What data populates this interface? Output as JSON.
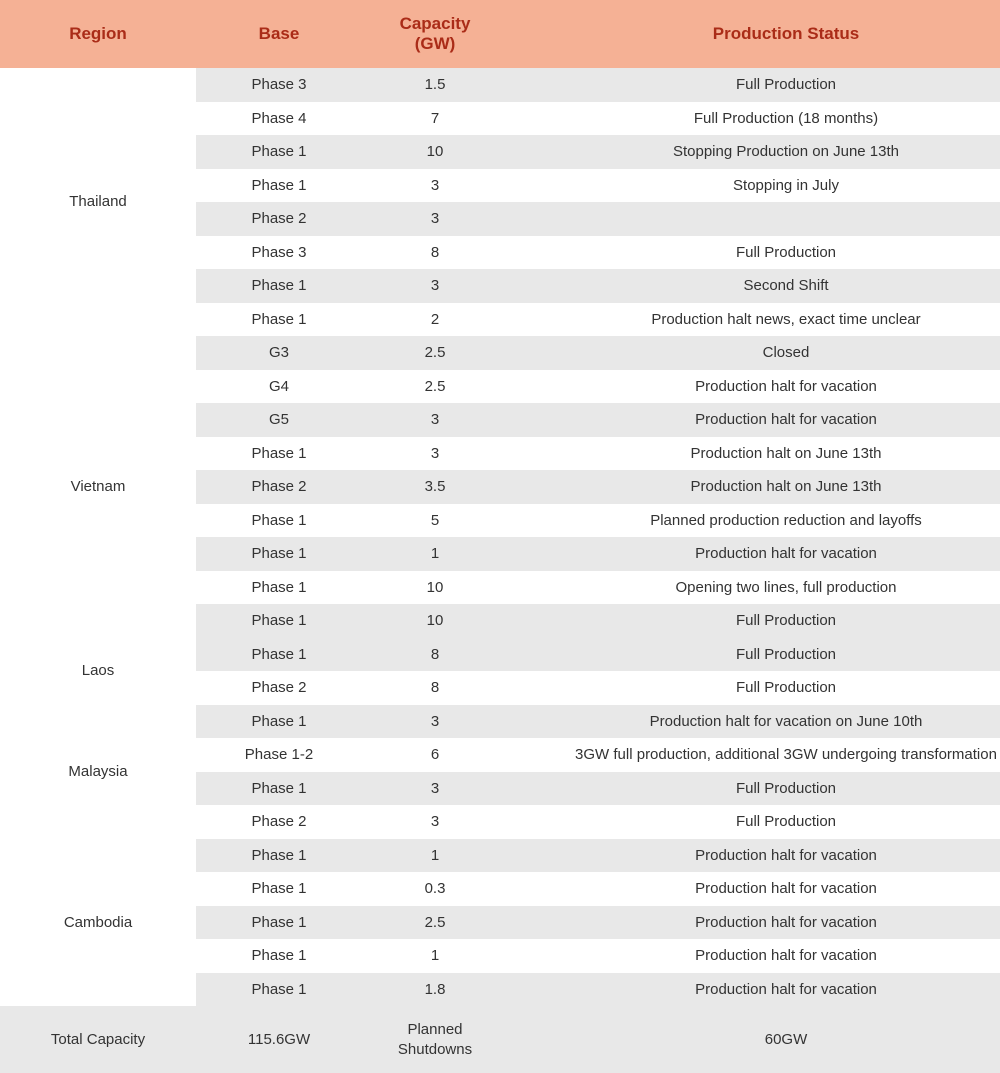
{
  "headers": {
    "region": "Region",
    "base": "Base",
    "capacity": "Capacity\n(GW)",
    "status": "Production Status"
  },
  "regions": [
    {
      "name": "Thailand",
      "rows": [
        {
          "base": "Phase 3",
          "capacity": "1.5",
          "status": "Full Production"
        },
        {
          "base": "Phase 4",
          "capacity": "7",
          "status": "Full Production (18 months)"
        },
        {
          "base": "Phase 1",
          "capacity": "10",
          "status": "Stopping Production on June 13th"
        },
        {
          "base": "Phase 1",
          "capacity": "3",
          "status": "Stopping in July"
        },
        {
          "base": "Phase 2",
          "capacity": "3",
          "status": ""
        },
        {
          "base": "Phase 3",
          "capacity": "8",
          "status": "Full Production"
        },
        {
          "base": "Phase 1",
          "capacity": "3",
          "status": "Second Shift"
        },
        {
          "base": "Phase 1",
          "capacity": "2",
          "status": "Production halt news, exact time unclear"
        }
      ]
    },
    {
      "name": "Vietnam",
      "rows": [
        {
          "base": "G3",
          "capacity": "2.5",
          "status": "Closed"
        },
        {
          "base": "G4",
          "capacity": "2.5",
          "status": "Production halt for vacation"
        },
        {
          "base": "G5",
          "capacity": "3",
          "status": "Production halt for vacation"
        },
        {
          "base": "Phase 1",
          "capacity": "3",
          "status": "Production halt on June 13th"
        },
        {
          "base": "Phase 2",
          "capacity": "3.5",
          "status": "Production halt on June 13th"
        },
        {
          "base": "Phase 1",
          "capacity": "5",
          "status": "Planned production reduction and layoffs"
        },
        {
          "base": "Phase 1",
          "capacity": "1",
          "status": "Production halt for vacation"
        },
        {
          "base": "Phase 1",
          "capacity": "10",
          "status": "Opening two lines, full production"
        },
        {
          "base": "Phase 1",
          "capacity": "10",
          "status": "Full Production"
        }
      ]
    },
    {
      "name": "Laos",
      "rows": [
        {
          "base": "Phase 1",
          "capacity": "8",
          "status": "Full Production"
        },
        {
          "base": "Phase 2",
          "capacity": "8",
          "status": "Full Production"
        }
      ]
    },
    {
      "name": "Malaysia",
      "rows": [
        {
          "base": "Phase 1",
          "capacity": "3",
          "status": "Production halt for vacation on June 10th"
        },
        {
          "base": "Phase 1-2",
          "capacity": "6",
          "status": "3GW full production, additional 3GW undergoing transformation"
        },
        {
          "base": "Phase 1",
          "capacity": "3",
          "status": "Full Production"
        },
        {
          "base": "Phase 2",
          "capacity": "3",
          "status": "Full Production"
        }
      ]
    },
    {
      "name": "Cambodia",
      "rows": [
        {
          "base": "Phase 1",
          "capacity": "1",
          "status": "Production halt for vacation"
        },
        {
          "base": "Phase 1",
          "capacity": "0.3",
          "status": "Production halt for vacation"
        },
        {
          "base": "Phase 1",
          "capacity": "2.5",
          "status": "Production halt for vacation"
        },
        {
          "base": "Phase 1",
          "capacity": "1",
          "status": "Production halt for vacation"
        },
        {
          "base": "Phase 1",
          "capacity": "1.8",
          "status": "Production halt for vacation"
        }
      ]
    }
  ],
  "totals": {
    "label_left": "Total Capacity",
    "value_left": "115.6GW",
    "label_right": "Planned\nShutdowns",
    "value_right": "60GW"
  },
  "style": {
    "header_bg": "#f5b195",
    "header_color": "#aa2c18",
    "stripe_even": "#e8e8e8",
    "stripe_odd": "#ffffff",
    "totals_bg": "#e8e8e8",
    "text_color": "#333333",
    "header_fontsize": 17,
    "body_fontsize": 15
  }
}
